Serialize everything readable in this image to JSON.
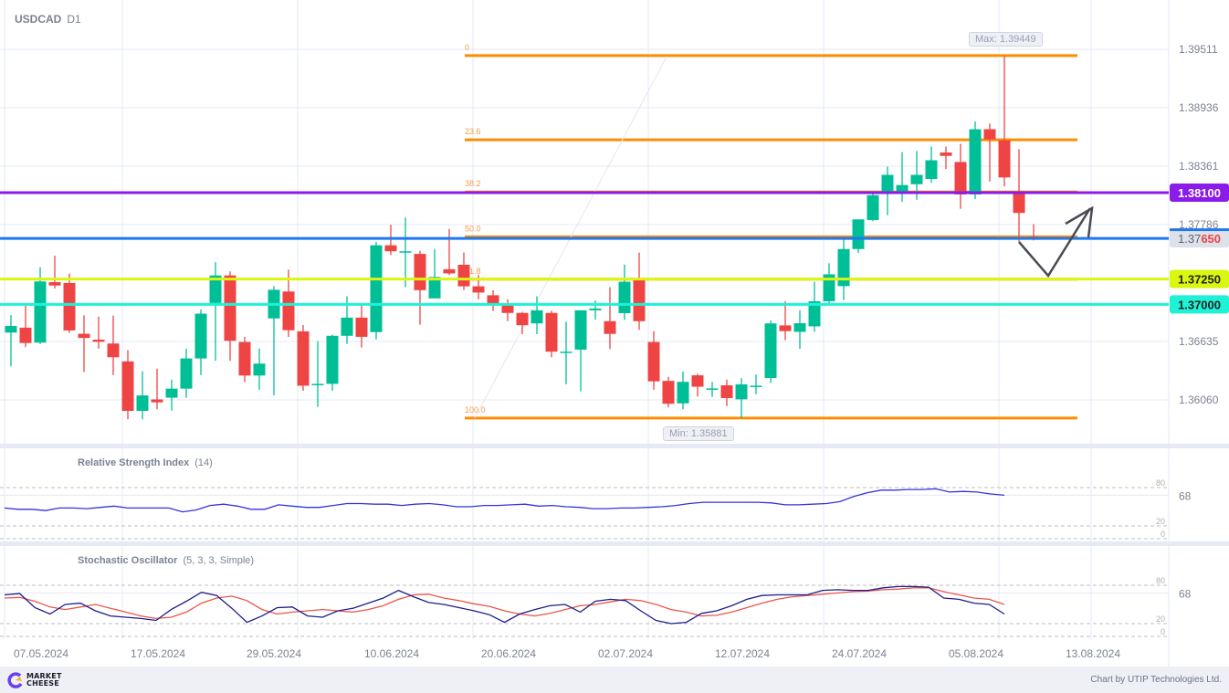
{
  "header": {
    "symbol": "USDCAD",
    "timeframe": "D1"
  },
  "price_axis": {
    "ticks": [
      "1.39511",
      "1.38936",
      "1.38361",
      "1.37786",
      "1.36635",
      "1.36060"
    ],
    "tick_values": [
      1.39511,
      1.38936,
      1.38361,
      1.37786,
      1.36635,
      1.3606
    ]
  },
  "levels": [
    {
      "label": "1.38100",
      "price": 1.381,
      "color": "#8b1be8",
      "text_color": "#ffffff"
    },
    {
      "label_prefix": "1.37",
      "label_suffix": "650",
      "price": 1.3765,
      "color": "#1e78f0",
      "text_color": "#5d6477",
      "current": true
    },
    {
      "label": "1.37250",
      "price": 1.3725,
      "color": "#d9f711",
      "text_color": "#222222"
    },
    {
      "label": "1.37000",
      "price": 1.37,
      "color": "#1df2d6",
      "text_color": "#222222"
    }
  ],
  "fibonacci": {
    "color": "#ff8c00",
    "levels": [
      {
        "label": "0",
        "price": 1.39449
      },
      {
        "label": "23.6",
        "price": 1.3862
      },
      {
        "label": "38.2",
        "price": 1.38107
      },
      {
        "label": "50.0",
        "price": 1.37665
      },
      {
        "label": "61.8",
        "price": 1.37248
      },
      {
        "label": "100.0",
        "price": 1.35881
      }
    ]
  },
  "annotations": {
    "max_label": "Max: 1.39449",
    "min_label": "Min: 1.35881"
  },
  "x_axis": {
    "labels": [
      "07.05.2024",
      "17.05.2024",
      "29.05.2024",
      "10.06.2024",
      "20.06.2024",
      "02.07.2024",
      "12.07.2024",
      "24.07.2024",
      "05.08.2024",
      "13.08.2024"
    ]
  },
  "rsi": {
    "title": "Relative Strength Index",
    "params": "(14)",
    "value_label": "68",
    "levels": [
      "80",
      "20",
      "0"
    ]
  },
  "stochastic": {
    "title": "Stochastic Oscillator",
    "params": "(5, 3, 3, Simple)",
    "value_label": "68",
    "levels": [
      "80",
      "20",
      "0"
    ]
  },
  "footer": {
    "logo_line1": "MARKET",
    "logo_line2": "CHEESE",
    "credit": "Chart by UTIP Technologies Ltd."
  },
  "colors": {
    "up": "#00bf97",
    "down": "#ef4444",
    "grid": "#e3e8f4",
    "rsi": "#3333dd",
    "stoch_k": "#1e1e8a",
    "stoch_d": "#e8574a"
  },
  "chart_data": {
    "type": "candlestick",
    "title": "USDCAD D1",
    "xlabel": "",
    "ylabel": "",
    "ylim": [
      1.3575,
      1.3985
    ],
    "candles": [
      {
        "o": 1.36723,
        "c": 1.36788,
        "h": 1.36895,
        "l": 1.3639
      },
      {
        "o": 1.36771,
        "c": 1.3662,
        "h": 1.36986,
        "l": 1.3658
      },
      {
        "o": 1.36624,
        "c": 1.37226,
        "h": 1.37367,
        "l": 1.3661
      },
      {
        "o": 1.37219,
        "c": 1.37186,
        "h": 1.3748,
        "l": 1.37156
      },
      {
        "o": 1.37211,
        "c": 1.36744,
        "h": 1.37305,
        "l": 1.3672
      },
      {
        "o": 1.36711,
        "c": 1.3667,
        "h": 1.36893,
        "l": 1.36335
      },
      {
        "o": 1.36653,
        "c": 1.36632,
        "h": 1.3688,
        "l": 1.36565
      },
      {
        "o": 1.36615,
        "c": 1.3648,
        "h": 1.3689,
        "l": 1.36305
      },
      {
        "o": 1.36439,
        "c": 1.35952,
        "h": 1.3655,
        "l": 1.3587
      },
      {
        "o": 1.35952,
        "c": 1.36104,
        "h": 1.36342,
        "l": 1.3587
      },
      {
        "o": 1.36065,
        "c": 1.36036,
        "h": 1.36367,
        "l": 1.35968
      },
      {
        "o": 1.36082,
        "c": 1.36171,
        "h": 1.3626,
        "l": 1.35955
      },
      {
        "o": 1.36171,
        "c": 1.36468,
        "h": 1.36564,
        "l": 1.3608
      },
      {
        "o": 1.36468,
        "c": 1.36909,
        "h": 1.3695,
        "l": 1.36305
      },
      {
        "o": 1.37014,
        "c": 1.37285,
        "h": 1.37416,
        "l": 1.36445
      },
      {
        "o": 1.37285,
        "c": 1.36642,
        "h": 1.37325,
        "l": 1.36445
      },
      {
        "o": 1.3663,
        "c": 1.363,
        "h": 1.3668,
        "l": 1.36235
      },
      {
        "o": 1.363,
        "c": 1.36417,
        "h": 1.36567,
        "l": 1.3616
      },
      {
        "o": 1.36862,
        "c": 1.37144,
        "h": 1.3718,
        "l": 1.36105
      },
      {
        "o": 1.37127,
        "c": 1.36746,
        "h": 1.37343,
        "l": 1.3668
      },
      {
        "o": 1.36735,
        "c": 1.362,
        "h": 1.36797,
        "l": 1.3615
      },
      {
        "o": 1.36218,
        "c": 1.36218,
        "h": 1.36638,
        "l": 1.3599
      },
      {
        "o": 1.36218,
        "c": 1.36691,
        "h": 1.36702,
        "l": 1.3615
      },
      {
        "o": 1.36691,
        "c": 1.3687,
        "h": 1.3708,
        "l": 1.36612
      },
      {
        "o": 1.3687,
        "c": 1.36681,
        "h": 1.37013,
        "l": 1.36576
      },
      {
        "o": 1.36727,
        "c": 1.37582,
        "h": 1.37615,
        "l": 1.36655
      },
      {
        "o": 1.37582,
        "c": 1.37523,
        "h": 1.37784,
        "l": 1.37486
      },
      {
        "o": 1.37523,
        "c": 1.37523,
        "h": 1.37856,
        "l": 1.3717
      },
      {
        "o": 1.37497,
        "c": 1.3714,
        "h": 1.37528,
        "l": 1.368
      },
      {
        "o": 1.37059,
        "c": 1.3727,
        "h": 1.37546,
        "l": 1.37077
      },
      {
        "o": 1.37346,
        "c": 1.37305,
        "h": 1.37742,
        "l": 1.3729
      },
      {
        "o": 1.3739,
        "c": 1.37178,
        "h": 1.37512,
        "l": 1.3714
      },
      {
        "o": 1.37178,
        "c": 1.37117,
        "h": 1.3729,
        "l": 1.3705
      },
      {
        "o": 1.3709,
        "c": 1.36992,
        "h": 1.3714,
        "l": 1.36935
      },
      {
        "o": 1.36992,
        "c": 1.36916,
        "h": 1.3705,
        "l": 1.36835
      },
      {
        "o": 1.36916,
        "c": 1.36795,
        "h": 1.36926,
        "l": 1.36707
      },
      {
        "o": 1.36813,
        "c": 1.36942,
        "h": 1.3708,
        "l": 1.36707
      },
      {
        "o": 1.36916,
        "c": 1.36535,
        "h": 1.36938,
        "l": 1.3648
      },
      {
        "o": 1.36535,
        "c": 1.36535,
        "h": 1.3683,
        "l": 1.36215
      },
      {
        "o": 1.36555,
        "c": 1.36942,
        "h": 1.36935,
        "l": 1.36145
      },
      {
        "o": 1.36942,
        "c": 1.3696,
        "h": 1.3704,
        "l": 1.3685
      },
      {
        "o": 1.36835,
        "c": 1.3671,
        "h": 1.3717,
        "l": 1.3656
      },
      {
        "o": 1.36914,
        "c": 1.37223,
        "h": 1.37393,
        "l": 1.36848
      },
      {
        "o": 1.37258,
        "c": 1.36835,
        "h": 1.3751,
        "l": 1.36749
      },
      {
        "o": 1.3663,
        "c": 1.36243,
        "h": 1.36737,
        "l": 1.3616
      },
      {
        "o": 1.36247,
        "c": 1.36022,
        "h": 1.36287,
        "l": 1.35986
      },
      {
        "o": 1.36026,
        "c": 1.36238,
        "h": 1.3634,
        "l": 1.35967
      },
      {
        "o": 1.36302,
        "c": 1.3619,
        "h": 1.36317,
        "l": 1.36093
      },
      {
        "o": 1.36173,
        "c": 1.36173,
        "h": 1.36237,
        "l": 1.36089
      },
      {
        "o": 1.36204,
        "c": 1.36078,
        "h": 1.3626,
        "l": 1.35999
      },
      {
        "o": 1.36066,
        "c": 1.36213,
        "h": 1.36274,
        "l": 1.35881
      },
      {
        "o": 1.362,
        "c": 1.362,
        "h": 1.36309,
        "l": 1.36116
      },
      {
        "o": 1.36275,
        "c": 1.36813,
        "h": 1.36843,
        "l": 1.36227
      },
      {
        "o": 1.36793,
        "c": 1.36737,
        "h": 1.37033,
        "l": 1.36648
      },
      {
        "o": 1.3673,
        "c": 1.36815,
        "h": 1.36942,
        "l": 1.36563
      },
      {
        "o": 1.36784,
        "c": 1.37031,
        "h": 1.37223,
        "l": 1.36731
      },
      {
        "o": 1.37031,
        "c": 1.37296,
        "h": 1.37405,
        "l": 1.37011
      },
      {
        "o": 1.3718,
        "c": 1.37545,
        "h": 1.37637,
        "l": 1.37042
      },
      {
        "o": 1.37545,
        "c": 1.37837,
        "h": 1.3781,
        "l": 1.37506
      },
      {
        "o": 1.37831,
        "c": 1.38075,
        "h": 1.38098,
        "l": 1.37818
      },
      {
        "o": 1.38088,
        "c": 1.38275,
        "h": 1.38356,
        "l": 1.37878
      },
      {
        "o": 1.3811,
        "c": 1.38175,
        "h": 1.385,
        "l": 1.3801
      },
      {
        "o": 1.38183,
        "c": 1.38275,
        "h": 1.3851,
        "l": 1.3803
      },
      {
        "o": 1.38235,
        "c": 1.38419,
        "h": 1.38554,
        "l": 1.38198
      },
      {
        "o": 1.38495,
        "c": 1.38462,
        "h": 1.38554,
        "l": 1.38332
      },
      {
        "o": 1.38402,
        "c": 1.38082,
        "h": 1.38581,
        "l": 1.37941
      },
      {
        "o": 1.38082,
        "c": 1.38724,
        "h": 1.388,
        "l": 1.38036
      },
      {
        "o": 1.38725,
        "c": 1.38625,
        "h": 1.3878,
        "l": 1.38209
      },
      {
        "o": 1.38615,
        "c": 1.3825,
        "h": 1.39449,
        "l": 1.38162
      },
      {
        "o": 1.38088,
        "c": 1.379,
        "h": 1.38528,
        "l": 1.37617
      },
      {
        "o": 1.37665,
        "c": 1.3765,
        "h": 1.3779,
        "l": 1.3763
      }
    ],
    "rsi_values": [
      48,
      46,
      46,
      44,
      48,
      48,
      47,
      49,
      51,
      48,
      48,
      48,
      48,
      42,
      45,
      52,
      54,
      51,
      46,
      46,
      53,
      51,
      49,
      49,
      52,
      55,
      55,
      54,
      54,
      52,
      54,
      55,
      53,
      50,
      50,
      52,
      52,
      53,
      54,
      51,
      52,
      50,
      49,
      47,
      47,
      48,
      48,
      49,
      50,
      52,
      55,
      57,
      57,
      57,
      57,
      57,
      56,
      53,
      53,
      54,
      55,
      58,
      66,
      72,
      76,
      76,
      77,
      77,
      78,
      73,
      74,
      73,
      70,
      68
    ],
    "stoch_k": [
      65,
      67,
      45,
      35,
      50,
      52,
      40,
      32,
      30,
      28,
      25,
      42,
      55,
      69,
      64,
      44,
      22,
      32,
      45,
      46,
      32,
      30,
      40,
      44,
      52,
      60,
      72,
      62,
      53,
      50,
      45,
      40,
      34,
      22,
      35,
      42,
      48,
      50,
      38,
      55,
      58,
      56,
      40,
      25,
      20,
      22,
      36,
      40,
      48,
      58,
      64,
      65,
      65,
      65,
      72,
      73,
      72,
      72,
      76,
      78,
      78,
      77,
      60,
      58,
      52,
      50,
      35
    ],
    "stoch_d": [
      60,
      61,
      55,
      46,
      42,
      46,
      50,
      44,
      38,
      32,
      28,
      30,
      38,
      52,
      60,
      63,
      56,
      42,
      35,
      38,
      40,
      42,
      40,
      38,
      42,
      48,
      58,
      65,
      66,
      60,
      56,
      51,
      47,
      40,
      35,
      32,
      36,
      42,
      48,
      50,
      54,
      58,
      56,
      50,
      42,
      38,
      32,
      33,
      38,
      45,
      52,
      58,
      62,
      64,
      66,
      68,
      70,
      71,
      73,
      74,
      76,
      76,
      70,
      65,
      60,
      58,
      50
    ]
  }
}
